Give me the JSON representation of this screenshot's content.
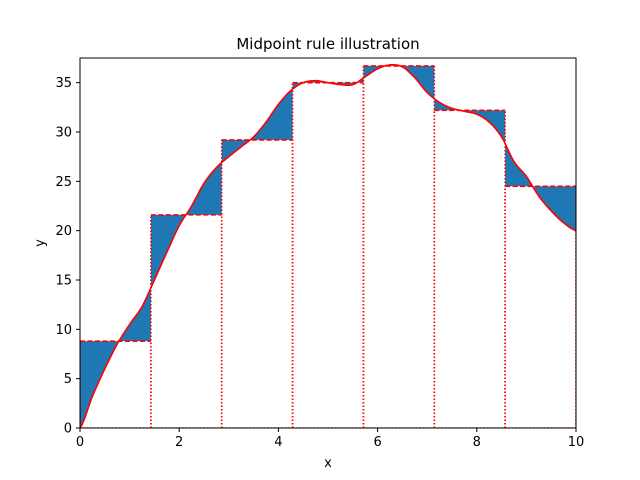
{
  "chart_data": {
    "type": "line",
    "title": "Midpoint rule illustration",
    "xlabel": "x",
    "ylabel": "y",
    "xlim": [
      0,
      10
    ],
    "ylim": [
      0,
      37.5
    ],
    "x_ticks": [
      0,
      2,
      4,
      6,
      8,
      10
    ],
    "y_ticks": [
      0,
      5,
      10,
      15,
      20,
      25,
      30,
      35
    ],
    "grid": false,
    "curve": {
      "x": [
        0,
        0.25,
        0.5,
        0.75,
        1.0,
        1.25,
        1.5,
        1.75,
        2.0,
        2.25,
        2.5,
        2.75,
        3.0,
        3.25,
        3.5,
        3.75,
        4.0,
        4.25,
        4.5,
        4.75,
        5.0,
        5.25,
        5.5,
        5.75,
        6.0,
        6.25,
        6.5,
        6.75,
        7.0,
        7.25,
        7.5,
        7.75,
        8.0,
        8.25,
        8.5,
        8.75,
        9.0,
        9.25,
        9.5,
        9.75,
        10.0
      ],
      "y": [
        0.0,
        3.2,
        6.0,
        8.5,
        10.5,
        12.3,
        15.0,
        17.8,
        20.5,
        22.5,
        24.8,
        26.4,
        27.5,
        28.5,
        29.5,
        31.0,
        32.8,
        34.2,
        35.0,
        35.2,
        35.0,
        34.8,
        34.8,
        35.6,
        36.4,
        36.8,
        36.6,
        35.5,
        34.0,
        33.0,
        32.4,
        32.1,
        31.8,
        31.0,
        29.5,
        27.0,
        25.5,
        23.5,
        22.0,
        20.8,
        20.0
      ],
      "color": "#ff0000"
    },
    "intervals": {
      "edges": [
        0,
        1.4286,
        2.8571,
        4.2857,
        5.7143,
        7.1429,
        8.5714,
        10
      ],
      "midpoint_values": [
        8.8,
        21.6,
        29.2,
        35.0,
        36.7,
        32.2,
        24.5
      ]
    },
    "colors": {
      "fill": "#1f77b4",
      "rect_edge": "#ff0000",
      "curve": "#ff0000"
    }
  }
}
